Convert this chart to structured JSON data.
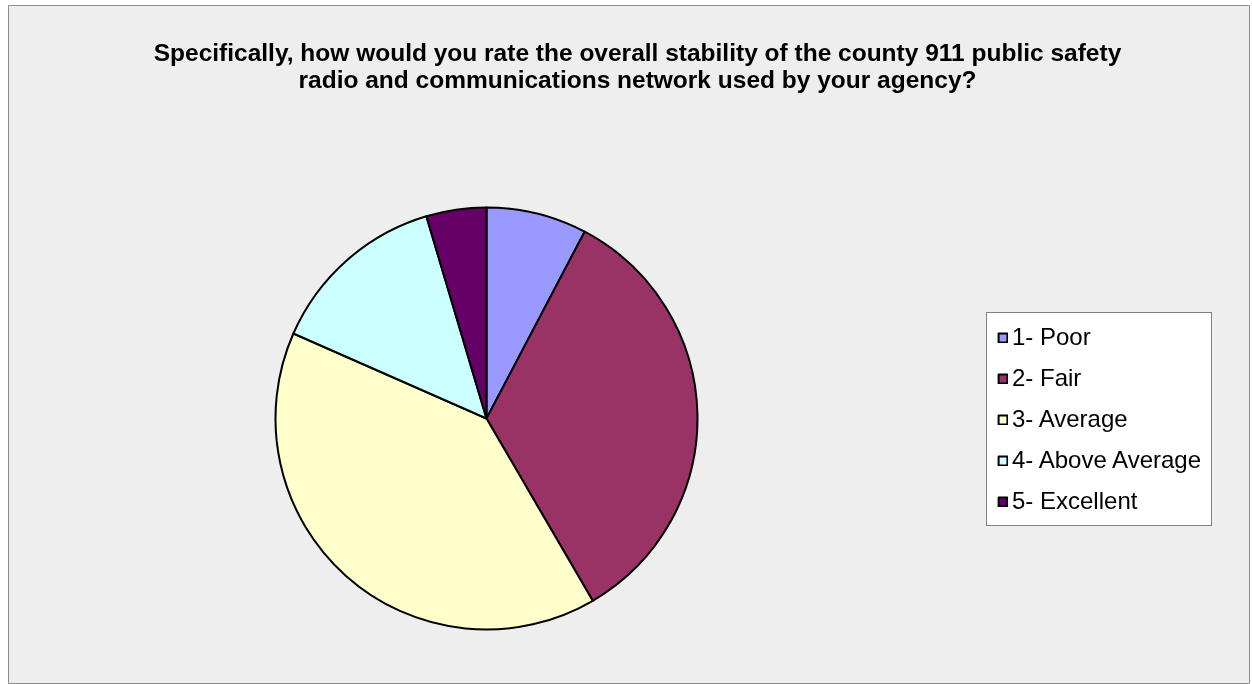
{
  "chart_data": {
    "type": "pie",
    "title": "Specifically, how would you rate the overall stability of the county 911 public safety radio and communications network used by your agency?",
    "categories": [
      "1- Poor",
      "2- Fair",
      "3- Average",
      "4- Above Average",
      "5- Excellent"
    ],
    "values": [
      7.7,
      33.9,
      40.0,
      13.8,
      4.6
    ],
    "colors": [
      "#9999ff",
      "#993366",
      "#ffffcc",
      "#ccffff",
      "#660066"
    ],
    "legend": "right"
  }
}
